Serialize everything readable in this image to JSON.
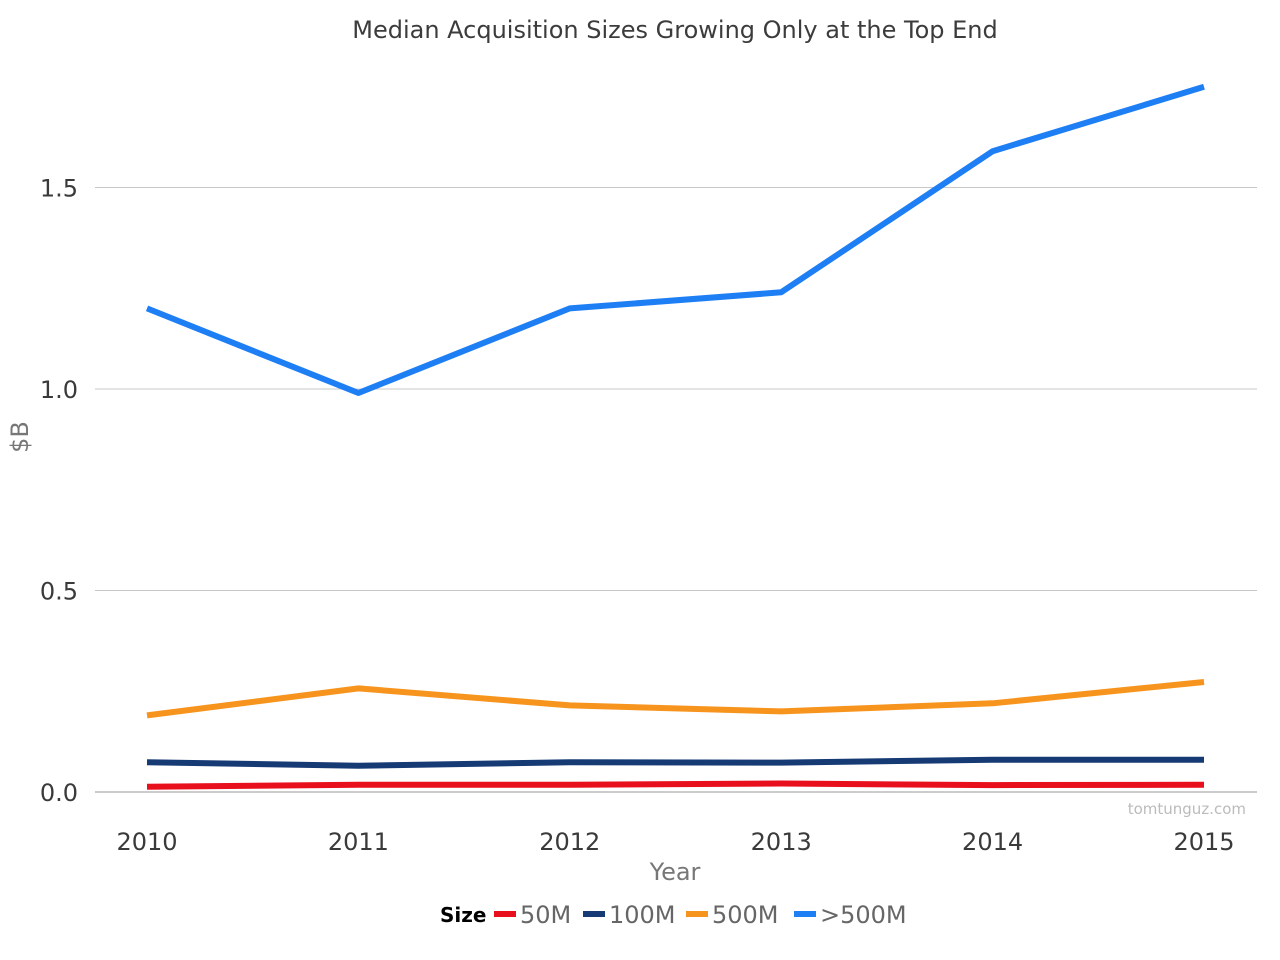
{
  "chart_data": {
    "type": "line",
    "title": "Median Acquisition Sizes Growing Only at the Top End",
    "xlabel": "Year",
    "ylabel": "$B",
    "categories": [
      "2010",
      "2011",
      "2012",
      "2013",
      "2014",
      "2015"
    ],
    "y_ticks": [
      "0.0",
      "0.5",
      "1.0",
      "1.5"
    ],
    "ylim": [
      0,
      1.8
    ],
    "grid": true,
    "legend_title": "Size",
    "legend_position": "bottom",
    "watermark": "tomtunguz.com",
    "series": [
      {
        "name": "50M",
        "color": "#e8101c",
        "values": [
          0.013,
          0.018,
          0.018,
          0.021,
          0.017,
          0.018
        ]
      },
      {
        "name": "100M",
        "color": "#163a74",
        "values": [
          0.074,
          0.065,
          0.074,
          0.073,
          0.08,
          0.08
        ]
      },
      {
        "name": "500M",
        "color": "#f7941d",
        "values": [
          0.19,
          0.257,
          0.215,
          0.2,
          0.22,
          0.273
        ]
      },
      {
        "name": ">500M",
        "color": "#1e7ff5",
        "values": [
          1.2,
          0.99,
          1.2,
          1.24,
          1.59,
          1.75
        ]
      }
    ]
  }
}
